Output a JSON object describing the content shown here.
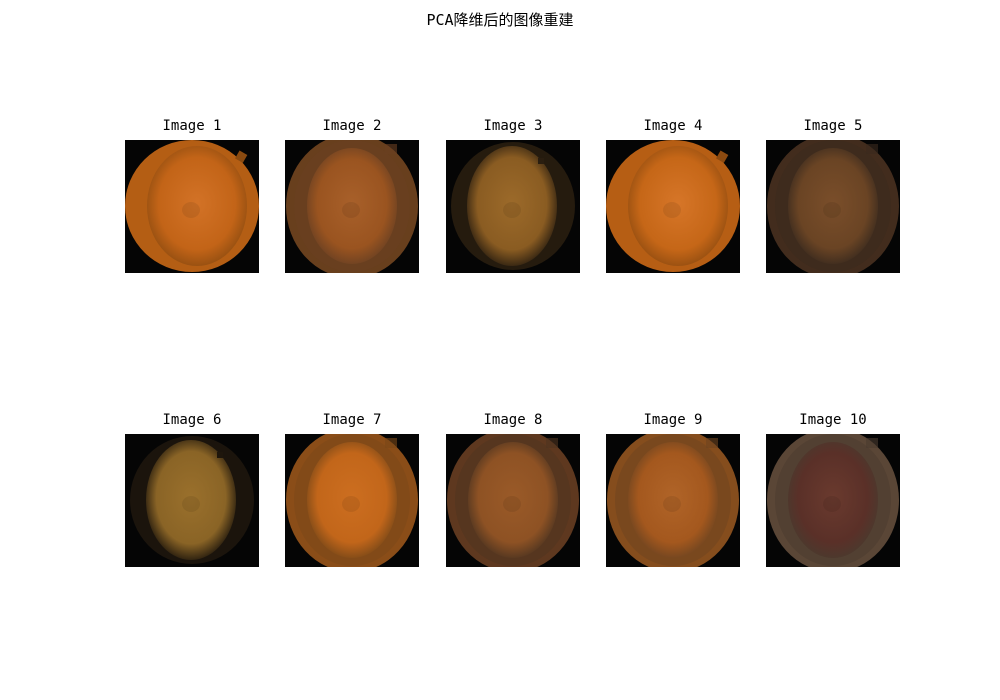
{
  "figure": {
    "title": "PCA降维后的图像重建"
  },
  "panels": [
    {
      "title": "Image 1",
      "variant": "full",
      "outer": "#b45e14",
      "inner": "#c56518",
      "edge": "#8a4a10",
      "glow": "#d8762a"
    },
    {
      "title": "Image 2",
      "variant": "ghost",
      "outer": "#7a4a22",
      "inner": "#9a5420",
      "edge": "#6a4022",
      "glow": "#a8602a"
    },
    {
      "title": "Image 3",
      "variant": "small",
      "outer": "#3a2a14",
      "inner": "#8a5c22",
      "edge": "#2a1e10",
      "glow": "#9c6a2a"
    },
    {
      "title": "Image 4",
      "variant": "full",
      "outer": "#b65e14",
      "inner": "#c86818",
      "edge": "#8c4a10",
      "glow": "#dc7a2c"
    },
    {
      "title": "Image 5",
      "variant": "ghost",
      "outer": "#4e3422",
      "inner": "#6a4424",
      "edge": "#3a2a1e",
      "glow": "#7a4e2a"
    },
    {
      "title": "Image 6",
      "variant": "small",
      "outer": "#2a1e10",
      "inner": "#8a6426",
      "edge": "#1e160c",
      "glow": "#9a702c"
    },
    {
      "title": "Image 7",
      "variant": "ghost",
      "outer": "#a25a1c",
      "inner": "#c2661a",
      "edge": "#7a4818",
      "glow": "#cc6e20"
    },
    {
      "title": "Image 8",
      "variant": "ghost",
      "outer": "#6e4224",
      "inner": "#8e5224",
      "edge": "#4e3420",
      "glow": "#9a5a28"
    },
    {
      "title": "Image 9",
      "variant": "ghost",
      "outer": "#9c5a22",
      "inner": "#a4581e",
      "edge": "#6e4420",
      "glow": "#b06428"
    },
    {
      "title": "Image 10",
      "variant": "ghost",
      "outer": "#6a5240",
      "inner": "#5a3028",
      "edge": "#4a3a2e",
      "glow": "#6a3a2e"
    }
  ]
}
